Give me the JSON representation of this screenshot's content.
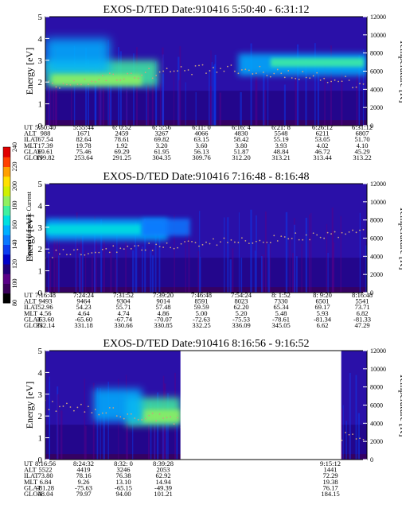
{
  "colors": {
    "colormap": [
      "#000000",
      "#3a005a",
      "#5a0088",
      "#20007a",
      "#0000c8",
      "#0a3cf0",
      "#0a78ff",
      "#00b0ff",
      "#00e0e0",
      "#40f0a0",
      "#90f060",
      "#d0f000",
      "#ffe000",
      "#ffa000",
      "#ff4000",
      "#e00000"
    ],
    "background": "#2a10a8",
    "temperature_trace": "#c8a080",
    "gap": "#ffffff"
  },
  "colorbar": {
    "label": "Second Harmonic Current",
    "ticks": [
      "80",
      "100",
      "120",
      "140",
      "160",
      "180",
      "200",
      "220",
      "240"
    ]
  },
  "chart_data": [
    {
      "type": "heatmap",
      "title": "EXOS-D/TED   Date:910416  5:50:40 - 6:31:12",
      "ylabel": "Energy [eV]",
      "ylabel_right": "Temperature [K]",
      "ylim": [
        0,
        5
      ],
      "ylim_right": [
        0,
        12000
      ],
      "yticks": [
        "0",
        "1",
        "2",
        "3",
        "4",
        "5"
      ],
      "yticks_right": [
        "0",
        "2000",
        "4000",
        "6000",
        "8000",
        "10000",
        "12000"
      ],
      "row_labels": [
        "UT",
        "ALT",
        "ILAT",
        "MLT",
        "GLAT",
        "GLON"
      ],
      "columns": [
        [
          "5:50:40",
          "988",
          "67.54",
          "17.39",
          "69.61",
          "199.82"
        ],
        [
          "5:55:44",
          "1671",
          "82.64",
          "19.78",
          "75.46",
          "253.64"
        ],
        [
          "6: 0:52",
          "2459",
          "78.61",
          "1.92",
          "69.29",
          "291.25"
        ],
        [
          "6: 5:56",
          "3267",
          "69.82",
          "3.20",
          "61.95",
          "304.35"
        ],
        [
          "6:11: 0",
          "4066",
          "63.15",
          "3.60",
          "56.13",
          "309.76"
        ],
        [
          "6:16: 4",
          "4830",
          "58.42",
          "3.80",
          "51.87",
          "312.20"
        ],
        [
          "6:21: 8",
          "5548",
          "55.19",
          "3.93",
          "48.84",
          "313.21"
        ],
        [
          "6:26:12",
          "6211",
          "53.05",
          "4.02",
          "46.72",
          "313.44"
        ],
        [
          "6:31:12",
          "6807",
          "51.70",
          "4.10",
          "45.29",
          "313.22"
        ]
      ]
    },
    {
      "type": "heatmap",
      "title": "EXOS-D/TED   Date:910416  7:16:48 - 8:16:48",
      "ylabel": "Energy [eV]",
      "ylabel_right": "Temperature [K]",
      "ylim": [
        0,
        5
      ],
      "ylim_right": [
        0,
        12000
      ],
      "yticks": [
        "0",
        "1",
        "2",
        "3",
        "4",
        "5"
      ],
      "yticks_right": [
        "0",
        "2000",
        "4000",
        "6000",
        "8000",
        "10000",
        "12000"
      ],
      "row_labels": [
        "UT",
        "ALT",
        "ILAT",
        "MLT",
        "GLAT",
        "GLON"
      ],
      "columns": [
        [
          "7:16:48",
          "9493",
          "52.96",
          "4.56",
          "-63.60",
          "332.14"
        ],
        [
          "7:24:24",
          "9464",
          "54.23",
          "4.64",
          "-65.60",
          "331.18"
        ],
        [
          "7:31:52",
          "9304",
          "55.71",
          "4.74",
          "-67.74",
          "330.66"
        ],
        [
          "7:39:20",
          "9014",
          "57.48",
          "4.86",
          "-70.07",
          "330.85"
        ],
        [
          "7:46:48",
          "8591",
          "59.59",
          "5.00",
          "-72.63",
          "332.25"
        ],
        [
          "7:54:24",
          "8023",
          "62.20",
          "5.20",
          "-75.53",
          "336.09"
        ],
        [
          "8: 1:52",
          "7330",
          "65.34",
          "5.48",
          "-78.61",
          "345.05"
        ],
        [
          "8: 9:20",
          "6501",
          "69.17",
          "5.93",
          "-81.34",
          "6.62"
        ],
        [
          "8:16:48",
          "5541",
          "73.71",
          "6.82",
          "-81.33",
          "47.29"
        ]
      ]
    },
    {
      "type": "heatmap",
      "title": "EXOS-D/TED   Date:910416  8:16:56 - 9:16:52",
      "ylabel": "Energy [eV]",
      "ylabel_right": "Temperature [K]",
      "ylim": [
        0,
        5
      ],
      "ylim_right": [
        0,
        12000
      ],
      "yticks": [
        "0",
        "1",
        "2",
        "3",
        "4",
        "5"
      ],
      "yticks_right": [
        "0",
        "2000",
        "4000",
        "6000",
        "8000",
        "10000",
        "12000"
      ],
      "row_labels": [
        "UT",
        "ALT",
        "ILAT",
        "MLT",
        "GLAT",
        "GLON"
      ],
      "columns": [
        [
          "8:16:56",
          "5522",
          "73.80",
          "6.84",
          "-81.28",
          "48.04"
        ],
        [
          "8:24:32",
          "4419",
          "78.16",
          "9.26",
          "-75.63",
          "79.97"
        ],
        [
          "8:32: 0",
          "3246",
          "76.38",
          "13.10",
          "-65.15",
          "94.00"
        ],
        [
          "8:39:28",
          "2053",
          "62.92",
          "14.94",
          "-49.39",
          "101.21"
        ],
        [
          "9:15:12",
          "1441",
          "72.29",
          "19.38",
          "76.17",
          "184.15"
        ]
      ]
    }
  ]
}
